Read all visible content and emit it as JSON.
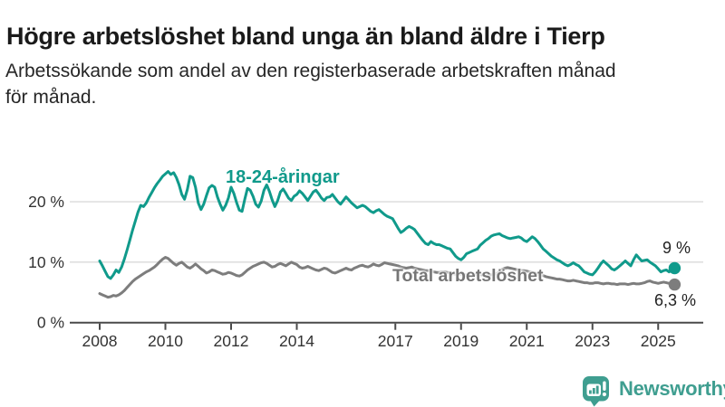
{
  "header": {
    "title": "Högre arbetslöshet bland unga än bland äldre i Tierp",
    "subtitle_lines": [
      "Arbetssökande som andel av den registerbaserade arbetskraften månad",
      "för månad."
    ]
  },
  "colors": {
    "accent_teal": "#109a8b",
    "line_gray": "#7d7d7d",
    "grid": "#dadada",
    "axis": "#4a4a4a",
    "tick_text": "#333333",
    "title_text": "#1a1a1a",
    "subtitle_text": "#262626",
    "total_label_gray": "#767676",
    "value_label": "#222222",
    "logo_teal": "#3f9e90"
  },
  "chart_data": {
    "type": "line",
    "title": "Högre arbetslöshet bland unga än bland äldre i Tierp",
    "subtitle": "Arbetssökande som andel av den registerbaserade arbetskraften månad för månad.",
    "xlabel": "",
    "ylabel": "",
    "unit": "%",
    "frequency": "monthly",
    "x_start": "2008-01",
    "x_end": "2025-07",
    "ylim": [
      0,
      27
    ],
    "grid": "horizontal",
    "legend_position": "inline-labels",
    "y_ticks": [
      {
        "value": 0,
        "label": "0 %"
      },
      {
        "value": 10,
        "label": "10 %"
      },
      {
        "value": 20,
        "label": "20 %"
      }
    ],
    "x_ticks": [
      {
        "year": 2008,
        "label": "2008"
      },
      {
        "year": 2010,
        "label": "2010"
      },
      {
        "year": 2012,
        "label": "2012"
      },
      {
        "year": 2014,
        "label": "2014"
      },
      {
        "year": 2017,
        "label": "2017"
      },
      {
        "year": 2019,
        "label": "2019"
      },
      {
        "year": 2021,
        "label": "2021"
      },
      {
        "year": 2023,
        "label": "2023"
      },
      {
        "year": 2025,
        "label": "2025"
      }
    ],
    "series": [
      {
        "name": "18-24-åringar",
        "color": "#109a8b",
        "end_label": "9 %",
        "end_value": 9.0,
        "values": [
          10.2,
          9.4,
          8.5,
          7.6,
          7.3,
          7.9,
          8.7,
          8.3,
          9.2,
          10.5,
          12.0,
          13.6,
          15.3,
          16.8,
          18.3,
          19.4,
          19.2,
          19.8,
          20.7,
          21.5,
          22.3,
          23.0,
          23.6,
          24.2,
          24.6,
          25.0,
          24.5,
          24.8,
          24.0,
          22.8,
          21.2,
          20.4,
          22.0,
          24.2,
          24.0,
          22.4,
          19.8,
          18.7,
          19.6,
          21.0,
          22.3,
          22.7,
          22.4,
          20.8,
          19.6,
          18.6,
          19.4,
          20.6,
          22.4,
          21.4,
          19.9,
          18.6,
          18.4,
          20.4,
          22.2,
          21.9,
          20.9,
          19.6,
          19.1,
          20.1,
          21.9,
          22.8,
          21.7,
          20.3,
          19.2,
          20.2,
          21.6,
          22.1,
          21.4,
          20.6,
          20.2,
          20.9,
          21.2,
          21.8,
          21.4,
          20.8,
          20.2,
          20.9,
          21.6,
          21.9,
          21.3,
          20.6,
          20.2,
          20.7,
          20.8,
          21.2,
          20.6,
          20.0,
          19.6,
          20.2,
          20.8,
          20.3,
          19.8,
          19.4,
          19.0,
          19.2,
          19.4,
          19.2,
          18.8,
          18.4,
          18.2,
          18.5,
          18.7,
          18.3,
          17.9,
          17.6,
          17.4,
          17.2,
          16.4,
          15.6,
          14.9,
          15.2,
          15.6,
          15.9,
          15.7,
          15.4,
          14.8,
          14.2,
          13.6,
          13.1,
          12.9,
          13.4,
          13.1,
          12.9,
          12.9,
          12.7,
          12.5,
          12.3,
          12.2,
          11.6,
          11.0,
          10.6,
          10.4,
          10.8,
          11.4,
          11.6,
          11.8,
          12.0,
          12.2,
          12.8,
          13.2,
          13.6,
          13.9,
          14.3,
          14.5,
          14.6,
          14.7,
          14.4,
          14.2,
          14.0,
          13.9,
          14.0,
          14.1,
          14.2,
          14.0,
          13.6,
          13.4,
          13.8,
          14.2,
          13.9,
          13.4,
          12.8,
          12.2,
          11.8,
          11.4,
          11.0,
          10.7,
          10.4,
          10.2,
          9.9,
          9.6,
          9.4,
          9.6,
          9.9,
          9.6,
          9.4,
          8.9,
          8.4,
          8.2,
          8.0,
          7.9,
          8.4,
          9.0,
          9.7,
          10.2,
          9.8,
          9.4,
          8.9,
          8.7,
          9.0,
          9.4,
          9.8,
          10.2,
          9.8,
          9.4,
          10.4,
          11.2,
          10.7,
          10.2,
          10.3,
          10.4,
          10.0,
          9.7,
          9.4,
          8.9,
          8.4,
          8.6,
          8.7,
          8.4,
          8.7,
          9.0
        ]
      },
      {
        "name": "Total arbetslöshet",
        "color": "#7d7d7d",
        "end_label": "6,3 %",
        "end_value": 6.3,
        "values": [
          4.8,
          4.6,
          4.4,
          4.2,
          4.3,
          4.5,
          4.4,
          4.6,
          4.9,
          5.3,
          5.8,
          6.3,
          6.8,
          7.2,
          7.5,
          7.8,
          8.1,
          8.4,
          8.6,
          8.9,
          9.2,
          9.6,
          10.1,
          10.5,
          10.8,
          10.6,
          10.2,
          9.8,
          9.5,
          9.8,
          10.0,
          9.6,
          9.2,
          9.0,
          9.3,
          9.7,
          9.3,
          8.9,
          8.6,
          8.2,
          8.4,
          8.7,
          8.6,
          8.4,
          8.2,
          8.0,
          8.1,
          8.3,
          8.2,
          8.0,
          7.8,
          7.7,
          7.9,
          8.3,
          8.7,
          9.0,
          9.3,
          9.5,
          9.7,
          9.9,
          10.0,
          9.8,
          9.5,
          9.2,
          9.3,
          9.6,
          9.8,
          9.6,
          9.4,
          9.7,
          10.0,
          9.8,
          9.6,
          9.2,
          9.0,
          9.1,
          9.3,
          9.1,
          8.9,
          8.7,
          8.6,
          8.8,
          9.0,
          8.9,
          8.6,
          8.3,
          8.2,
          8.4,
          8.6,
          8.8,
          9.0,
          8.8,
          8.7,
          9.0,
          9.2,
          9.4,
          9.5,
          9.3,
          9.2,
          9.4,
          9.7,
          9.5,
          9.4,
          9.6,
          9.9,
          9.8,
          9.7,
          9.6,
          9.5,
          9.4,
          9.2,
          9.1,
          9.0,
          9.1,
          9.2,
          9.0,
          8.9,
          8.8,
          8.7,
          8.6,
          8.6,
          8.5,
          8.4,
          8.3,
          8.3,
          8.4,
          8.4,
          8.3,
          8.2,
          8.1,
          8.0,
          8.0,
          8.0,
          7.9,
          7.9,
          7.8,
          7.8,
          7.9,
          8.0,
          7.9,
          7.9,
          7.8,
          7.8,
          7.9,
          8.0,
          8.1,
          8.4,
          8.8,
          9.0,
          9.1,
          9.0,
          8.9,
          8.8,
          8.7,
          8.6,
          8.6,
          8.5,
          8.4,
          8.3,
          8.2,
          8.0,
          7.9,
          7.8,
          7.6,
          7.5,
          7.4,
          7.3,
          7.2,
          7.2,
          7.1,
          7.0,
          6.9,
          6.9,
          7.0,
          6.9,
          6.8,
          6.7,
          6.6,
          6.6,
          6.5,
          6.5,
          6.6,
          6.6,
          6.5,
          6.4,
          6.5,
          6.5,
          6.4,
          6.4,
          6.3,
          6.4,
          6.4,
          6.4,
          6.3,
          6.4,
          6.5,
          6.4,
          6.4,
          6.5,
          6.6,
          6.8,
          6.9,
          6.7,
          6.6,
          6.5,
          6.6,
          6.7,
          6.6,
          6.5,
          6.4,
          6.3
        ]
      }
    ]
  },
  "footer": {
    "brand": "Newsworthy"
  }
}
